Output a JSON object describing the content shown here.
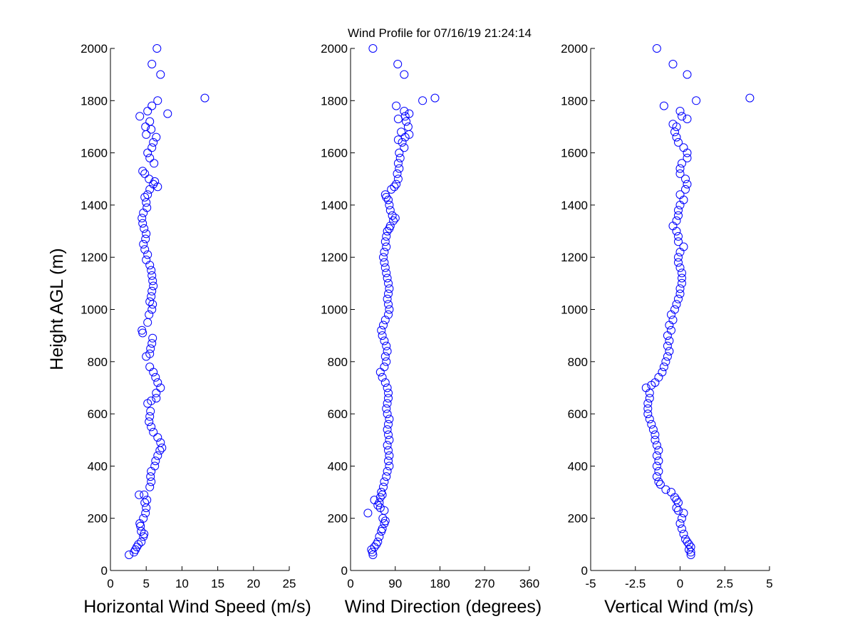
{
  "title": "Wind Profile for  07/16/19 21:24:14",
  "ylabel": "Height AGL (m)",
  "marker_color": "#0000ff",
  "chart_data": [
    {
      "type": "scatter",
      "name": "speed",
      "xlabel": "Horizontal Wind Speed (m/s)",
      "xlim": [
        0,
        25
      ],
      "ylim": [
        0,
        2000
      ],
      "xticks": [
        0,
        5,
        10,
        15,
        20,
        25
      ],
      "xtick_labels": [
        "0",
        "5",
        "10",
        "15",
        "20",
        "25"
      ],
      "yticks": [
        0,
        200,
        400,
        600,
        800,
        1000,
        1200,
        1400,
        1600,
        1800,
        2000
      ],
      "points": [
        [
          2.6,
          60
        ],
        [
          3.3,
          70
        ],
        [
          3.5,
          80
        ],
        [
          3.7,
          90
        ],
        [
          3.9,
          100
        ],
        [
          4.3,
          110
        ],
        [
          4.6,
          130
        ],
        [
          4.7,
          140
        ],
        [
          4.3,
          150
        ],
        [
          4.2,
          170
        ],
        [
          4.1,
          180
        ],
        [
          4.6,
          200
        ],
        [
          4.9,
          220
        ],
        [
          5.0,
          240
        ],
        [
          4.8,
          260
        ],
        [
          5.1,
          270
        ],
        [
          4.7,
          290
        ],
        [
          4.0,
          290
        ],
        [
          5.5,
          320
        ],
        [
          5.7,
          340
        ],
        [
          5.6,
          360
        ],
        [
          5.7,
          380
        ],
        [
          6.2,
          400
        ],
        [
          6.3,
          420
        ],
        [
          6.6,
          440
        ],
        [
          6.9,
          460
        ],
        [
          7.2,
          470
        ],
        [
          7.0,
          490
        ],
        [
          6.6,
          510
        ],
        [
          6.0,
          530
        ],
        [
          5.7,
          550
        ],
        [
          5.4,
          570
        ],
        [
          5.5,
          590
        ],
        [
          5.6,
          610
        ],
        [
          5.2,
          640
        ],
        [
          5.7,
          650
        ],
        [
          6.4,
          660
        ],
        [
          6.4,
          680
        ],
        [
          7.0,
          700
        ],
        [
          6.6,
          720
        ],
        [
          6.3,
          740
        ],
        [
          6.0,
          760
        ],
        [
          5.5,
          780
        ],
        [
          5.0,
          820
        ],
        [
          5.5,
          830
        ],
        [
          5.6,
          850
        ],
        [
          5.8,
          870
        ],
        [
          5.9,
          890
        ],
        [
          4.5,
          910
        ],
        [
          4.4,
          920
        ],
        [
          5.2,
          950
        ],
        [
          5.4,
          980
        ],
        [
          5.8,
          1000
        ],
        [
          5.9,
          1020
        ],
        [
          5.5,
          1030
        ],
        [
          5.7,
          1050
        ],
        [
          5.8,
          1070
        ],
        [
          6.0,
          1090
        ],
        [
          5.9,
          1110
        ],
        [
          5.8,
          1130
        ],
        [
          5.7,
          1150
        ],
        [
          5.5,
          1170
        ],
        [
          5.0,
          1190
        ],
        [
          5.2,
          1210
        ],
        [
          4.8,
          1230
        ],
        [
          4.6,
          1250
        ],
        [
          4.9,
          1270
        ],
        [
          5.0,
          1290
        ],
        [
          4.7,
          1310
        ],
        [
          4.5,
          1330
        ],
        [
          4.4,
          1350
        ],
        [
          4.6,
          1370
        ],
        [
          5.1,
          1390
        ],
        [
          5.0,
          1410
        ],
        [
          4.8,
          1430
        ],
        [
          5.2,
          1440
        ],
        [
          6.6,
          1470
        ],
        [
          5.5,
          1460
        ],
        [
          6.0,
          1480
        ],
        [
          6.2,
          1490
        ],
        [
          5.4,
          1500
        ],
        [
          4.8,
          1520
        ],
        [
          4.5,
          1530
        ],
        [
          6.1,
          1560
        ],
        [
          5.5,
          1580
        ],
        [
          5.2,
          1600
        ],
        [
          5.8,
          1620
        ],
        [
          6.0,
          1640
        ],
        [
          6.4,
          1660
        ],
        [
          5.0,
          1670
        ],
        [
          5.7,
          1690
        ],
        [
          4.9,
          1700
        ],
        [
          5.5,
          1720
        ],
        [
          4.1,
          1740
        ],
        [
          8.0,
          1750
        ],
        [
          5.2,
          1760
        ],
        [
          5.8,
          1780
        ],
        [
          6.6,
          1800
        ],
        [
          13.2,
          1810
        ],
        [
          7.0,
          1900
        ],
        [
          5.8,
          1940
        ],
        [
          6.5,
          2000
        ]
      ]
    },
    {
      "type": "scatter",
      "name": "direction",
      "xlabel": "Wind Direction (degrees)",
      "xlim": [
        0,
        360
      ],
      "ylim": [
        0,
        2000
      ],
      "xticks": [
        0,
        90,
        180,
        270,
        360
      ],
      "xtick_labels": [
        "0",
        "90",
        "180",
        "270",
        "360"
      ],
      "yticks": [
        0,
        200,
        400,
        600,
        800,
        1000,
        1200,
        1400,
        1600,
        1800,
        2000
      ],
      "points": [
        [
          45,
          60
        ],
        [
          44,
          70
        ],
        [
          42,
          80
        ],
        [
          48,
          90
        ],
        [
          52,
          100
        ],
        [
          55,
          110
        ],
        [
          58,
          130
        ],
        [
          62,
          150
        ],
        [
          64,
          160
        ],
        [
          68,
          180
        ],
        [
          70,
          190
        ],
        [
          65,
          200
        ],
        [
          35,
          220
        ],
        [
          68,
          230
        ],
        [
          60,
          240
        ],
        [
          55,
          250
        ],
        [
          58,
          260
        ],
        [
          48,
          270
        ],
        [
          60,
          280
        ],
        [
          64,
          290
        ],
        [
          62,
          300
        ],
        [
          66,
          320
        ],
        [
          68,
          340
        ],
        [
          72,
          360
        ],
        [
          74,
          380
        ],
        [
          78,
          400
        ],
        [
          76,
          420
        ],
        [
          78,
          440
        ],
        [
          76,
          460
        ],
        [
          74,
          480
        ],
        [
          78,
          500
        ],
        [
          76,
          520
        ],
        [
          74,
          540
        ],
        [
          76,
          560
        ],
        [
          78,
          580
        ],
        [
          74,
          600
        ],
        [
          72,
          620
        ],
        [
          74,
          640
        ],
        [
          76,
          660
        ],
        [
          76,
          680
        ],
        [
          74,
          700
        ],
        [
          70,
          720
        ],
        [
          64,
          740
        ],
        [
          60,
          760
        ],
        [
          68,
          780
        ],
        [
          72,
          800
        ],
        [
          70,
          820
        ],
        [
          74,
          840
        ],
        [
          72,
          860
        ],
        [
          68,
          880
        ],
        [
          64,
          900
        ],
        [
          62,
          920
        ],
        [
          66,
          940
        ],
        [
          70,
          960
        ],
        [
          76,
          980
        ],
        [
          78,
          1000
        ],
        [
          76,
          1020
        ],
        [
          74,
          1040
        ],
        [
          76,
          1060
        ],
        [
          78,
          1080
        ],
        [
          76,
          1100
        ],
        [
          74,
          1120
        ],
        [
          72,
          1140
        ],
        [
          70,
          1160
        ],
        [
          68,
          1180
        ],
        [
          66,
          1200
        ],
        [
          68,
          1220
        ],
        [
          72,
          1240
        ],
        [
          70,
          1260
        ],
        [
          72,
          1280
        ],
        [
          74,
          1300
        ],
        [
          78,
          1310
        ],
        [
          80,
          1320
        ],
        [
          86,
          1340
        ],
        [
          90,
          1350
        ],
        [
          84,
          1360
        ],
        [
          80,
          1380
        ],
        [
          78,
          1400
        ],
        [
          76,
          1420
        ],
        [
          72,
          1430
        ],
        [
          70,
          1440
        ],
        [
          82,
          1460
        ],
        [
          88,
          1470
        ],
        [
          92,
          1480
        ],
        [
          96,
          1500
        ],
        [
          94,
          1520
        ],
        [
          98,
          1540
        ],
        [
          96,
          1560
        ],
        [
          100,
          1580
        ],
        [
          98,
          1600
        ],
        [
          108,
          1620
        ],
        [
          104,
          1640
        ],
        [
          96,
          1650
        ],
        [
          110,
          1660
        ],
        [
          102,
          1680
        ],
        [
          118,
          1670
        ],
        [
          116,
          1700
        ],
        [
          112,
          1720
        ],
        [
          110,
          1740
        ],
        [
          118,
          1750
        ],
        [
          108,
          1760
        ],
        [
          96,
          1730
        ],
        [
          92,
          1780
        ],
        [
          145,
          1800
        ],
        [
          170,
          1810
        ],
        [
          108,
          1900
        ],
        [
          95,
          1940
        ],
        [
          45,
          2000
        ]
      ]
    },
    {
      "type": "scatter",
      "name": "vertical",
      "xlabel": "Vertical Wind (m/s)",
      "xlim": [
        -5,
        5
      ],
      "ylim": [
        0,
        2000
      ],
      "xticks": [
        -5,
        -2.5,
        0,
        2.5,
        5
      ],
      "xtick_labels": [
        "-5",
        "-2.5",
        "0",
        "2.5",
        "5"
      ],
      "yticks": [
        0,
        200,
        400,
        600,
        800,
        1000,
        1200,
        1400,
        1600,
        1800,
        2000
      ],
      "points": [
        [
          0.6,
          60
        ],
        [
          0.6,
          70
        ],
        [
          0.5,
          80
        ],
        [
          0.6,
          90
        ],
        [
          0.5,
          100
        ],
        [
          0.4,
          110
        ],
        [
          0.3,
          120
        ],
        [
          0.2,
          140
        ],
        [
          0.1,
          160
        ],
        [
          0.0,
          180
        ],
        [
          0.1,
          200
        ],
        [
          0.2,
          220
        ],
        [
          -0.1,
          230
        ],
        [
          -0.2,
          240
        ],
        [
          -0.1,
          260
        ],
        [
          -0.2,
          270
        ],
        [
          -0.3,
          280
        ],
        [
          -0.5,
          300
        ],
        [
          -0.8,
          310
        ],
        [
          -1.1,
          330
        ],
        [
          -1.2,
          340
        ],
        [
          -1.3,
          360
        ],
        [
          -1.2,
          380
        ],
        [
          -1.3,
          400
        ],
        [
          -1.2,
          420
        ],
        [
          -1.3,
          440
        ],
        [
          -1.2,
          460
        ],
        [
          -1.3,
          480
        ],
        [
          -1.4,
          500
        ],
        [
          -1.4,
          520
        ],
        [
          -1.5,
          540
        ],
        [
          -1.6,
          560
        ],
        [
          -1.7,
          580
        ],
        [
          -1.8,
          600
        ],
        [
          -1.8,
          620
        ],
        [
          -1.8,
          640
        ],
        [
          -1.7,
          660
        ],
        [
          -1.7,
          680
        ],
        [
          -1.9,
          700
        ],
        [
          -1.6,
          710
        ],
        [
          -1.4,
          720
        ],
        [
          -1.2,
          740
        ],
        [
          -1.0,
          760
        ],
        [
          -0.9,
          780
        ],
        [
          -0.8,
          800
        ],
        [
          -0.7,
          820
        ],
        [
          -0.6,
          840
        ],
        [
          -0.7,
          860
        ],
        [
          -0.6,
          880
        ],
        [
          -0.7,
          900
        ],
        [
          -0.5,
          920
        ],
        [
          -0.6,
          940
        ],
        [
          -0.4,
          960
        ],
        [
          -0.5,
          980
        ],
        [
          -0.3,
          1000
        ],
        [
          -0.2,
          1020
        ],
        [
          -0.1,
          1040
        ],
        [
          0.0,
          1060
        ],
        [
          0.0,
          1080
        ],
        [
          0.1,
          1100
        ],
        [
          0.1,
          1120
        ],
        [
          0.1,
          1140
        ],
        [
          0.0,
          1160
        ],
        [
          -0.1,
          1180
        ],
        [
          -0.1,
          1200
        ],
        [
          0.0,
          1220
        ],
        [
          0.2,
          1240
        ],
        [
          -0.1,
          1260
        ],
        [
          -0.1,
          1280
        ],
        [
          -0.2,
          1300
        ],
        [
          -0.4,
          1320
        ],
        [
          -0.2,
          1340
        ],
        [
          -0.1,
          1360
        ],
        [
          -0.1,
          1380
        ],
        [
          0.0,
          1400
        ],
        [
          0.2,
          1420
        ],
        [
          0.0,
          1440
        ],
        [
          0.3,
          1460
        ],
        [
          0.4,
          1480
        ],
        [
          0.3,
          1500
        ],
        [
          0.0,
          1520
        ],
        [
          0.0,
          1540
        ],
        [
          0.1,
          1560
        ],
        [
          0.4,
          1580
        ],
        [
          0.4,
          1600
        ],
        [
          0.2,
          1620
        ],
        [
          -0.1,
          1640
        ],
        [
          -0.2,
          1660
        ],
        [
          -0.3,
          1680
        ],
        [
          -0.2,
          1700
        ],
        [
          -0.4,
          1710
        ],
        [
          0.4,
          1730
        ],
        [
          0.1,
          1740
        ],
        [
          0.0,
          1760
        ],
        [
          -0.9,
          1780
        ],
        [
          0.9,
          1800
        ],
        [
          3.9,
          1810
        ],
        [
          0.4,
          1900
        ],
        [
          -0.4,
          1940
        ],
        [
          -1.3,
          2000
        ]
      ]
    }
  ]
}
